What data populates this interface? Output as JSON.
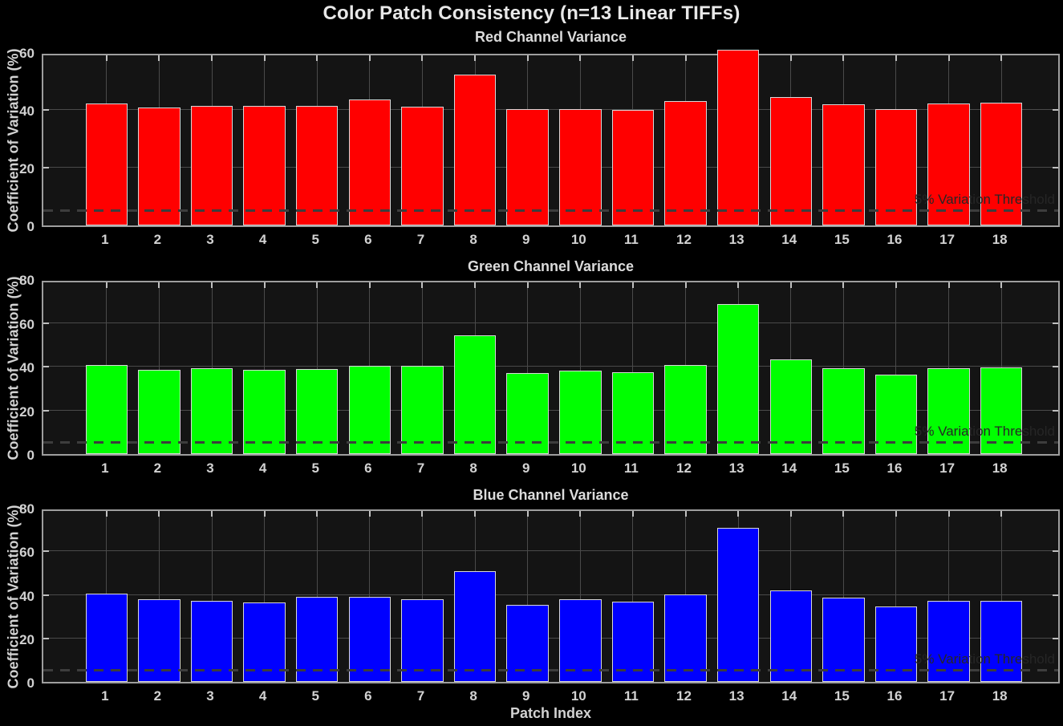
{
  "title": "Color Patch Consistency (n=13 Linear TIFFs)",
  "colors": {
    "background": "#000000",
    "plot_background": "#141414",
    "grid": "#4a4a4a",
    "axis_box": "#9e9e9e",
    "inner_tick": "#c0c0c0",
    "tick_text": "#d2d2d2",
    "main_title_text": "#e8e8e8",
    "panel_title_text": "#dcdcdc",
    "bar_edge": "#d8d8d8",
    "threshold_line": "#3d3d3d",
    "threshold_text": "#262626",
    "red_bar": "#ff0000",
    "green_bar": "#00ff00",
    "blue_bar": "#0000ff"
  },
  "chart_data": [
    {
      "type": "bar",
      "title": "Red Channel Variance",
      "ylabel": "Coefficient of Variation (%)",
      "xlabel": "",
      "bar_color": "#ff0000",
      "ylim": [
        0,
        60
      ],
      "yticks": [
        0,
        20,
        40,
        60
      ],
      "grid": true,
      "categories": [
        "1",
        "2",
        "3",
        "4",
        "5",
        "6",
        "7",
        "8",
        "9",
        "10",
        "11",
        "12",
        "13",
        "14",
        "15",
        "16",
        "17",
        "18"
      ],
      "values": [
        42.3,
        40.7,
        41.4,
        41.3,
        41.4,
        43.6,
        41.0,
        52.3,
        40.3,
        40.3,
        40.0,
        43.1,
        60.8,
        44.4,
        41.9,
        40.3,
        42.2,
        42.4
      ],
      "threshold": {
        "value": 5,
        "label": "5% Variation Threshold"
      }
    },
    {
      "type": "bar",
      "title": "Green Channel Variance",
      "ylabel": "Coefficient of Variation (%)",
      "xlabel": "",
      "bar_color": "#00ff00",
      "ylim": [
        0,
        80
      ],
      "yticks": [
        0,
        20,
        40,
        60,
        80
      ],
      "grid": true,
      "categories": [
        "1",
        "2",
        "3",
        "4",
        "5",
        "6",
        "7",
        "8",
        "9",
        "10",
        "11",
        "12",
        "13",
        "14",
        "15",
        "16",
        "17",
        "18"
      ],
      "values": [
        40.6,
        38.7,
        39.3,
        38.4,
        39.0,
        40.4,
        40.5,
        54.4,
        36.9,
        38.1,
        37.5,
        40.9,
        68.6,
        43.2,
        39.4,
        36.4,
        39.4,
        39.6
      ],
      "threshold": {
        "value": 5,
        "label": "5% Variation Threshold"
      }
    },
    {
      "type": "bar",
      "title": "Blue Channel Variance",
      "ylabel": "Coefficient of Variation (%)",
      "xlabel": "Patch Index",
      "bar_color": "#0000ff",
      "ylim": [
        0,
        80
      ],
      "yticks": [
        0,
        20,
        40,
        60,
        80
      ],
      "grid": true,
      "categories": [
        "1",
        "2",
        "3",
        "4",
        "5",
        "6",
        "7",
        "8",
        "9",
        "10",
        "11",
        "12",
        "13",
        "14",
        "15",
        "16",
        "17",
        "18"
      ],
      "values": [
        40.5,
        38.0,
        37.2,
        36.4,
        39.0,
        39.2,
        37.9,
        51.0,
        35.4,
        38.0,
        36.7,
        40.1,
        70.7,
        42.2,
        38.7,
        34.7,
        37.1,
        37.2
      ],
      "threshold": {
        "value": 5,
        "label": "5% Variation Threshold"
      }
    }
  ]
}
